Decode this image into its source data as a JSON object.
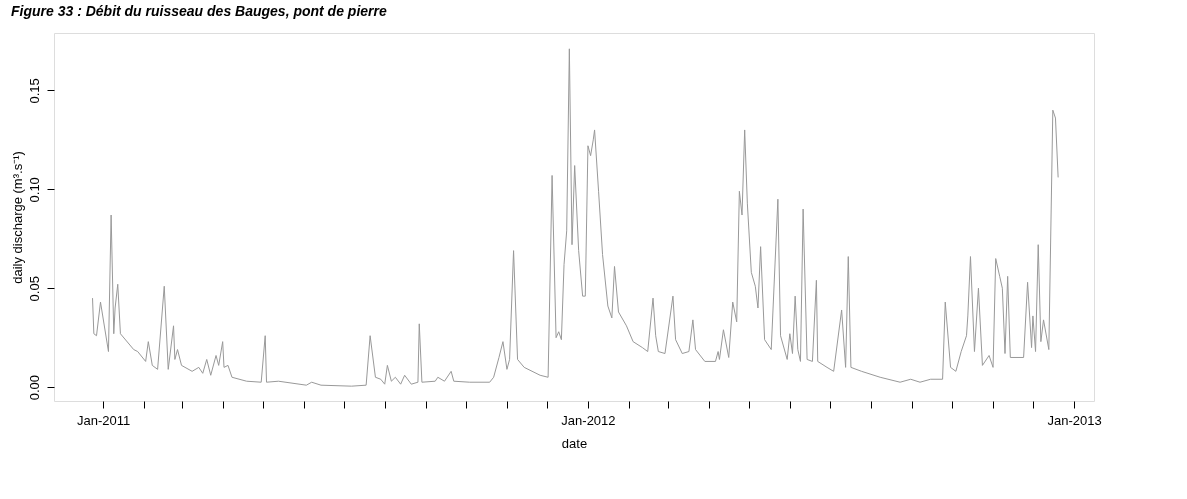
{
  "chart_data": {
    "type": "line",
    "title": "Figure 33 : Débit du ruisseau des Bauges, pont de pierre",
    "xlabel": "date",
    "ylabel": "daily discharge (m³.s⁻¹)",
    "xlim": [
      "2010-11-25",
      "2013-01-16"
    ],
    "xticks": [
      {
        "value": "2011-01-01",
        "label": "Jan-2011"
      },
      {
        "value": "2011-02-01",
        "label": null
      },
      {
        "value": "2011-03-01",
        "label": null
      },
      {
        "value": "2011-04-01",
        "label": null
      },
      {
        "value": "2011-05-01",
        "label": null
      },
      {
        "value": "2011-06-01",
        "label": null
      },
      {
        "value": "2011-07-01",
        "label": null
      },
      {
        "value": "2011-08-01",
        "label": null
      },
      {
        "value": "2011-09-01",
        "label": null
      },
      {
        "value": "2011-10-01",
        "label": null
      },
      {
        "value": "2011-11-01",
        "label": null
      },
      {
        "value": "2011-12-01",
        "label": null
      },
      {
        "value": "2012-01-01",
        "label": "Jan-2012"
      },
      {
        "value": "2012-02-01",
        "label": null
      },
      {
        "value": "2012-03-01",
        "label": null
      },
      {
        "value": "2012-04-01",
        "label": null
      },
      {
        "value": "2012-05-01",
        "label": null
      },
      {
        "value": "2012-06-01",
        "label": null
      },
      {
        "value": "2012-07-01",
        "label": null
      },
      {
        "value": "2012-08-01",
        "label": null
      },
      {
        "value": "2012-09-01",
        "label": null
      },
      {
        "value": "2012-10-01",
        "label": null
      },
      {
        "value": "2012-11-01",
        "label": null
      },
      {
        "value": "2012-12-01",
        "label": null
      },
      {
        "value": "2013-01-01",
        "label": "Jan-2013"
      }
    ],
    "ylim": [
      -0.007,
      0.179
    ],
    "yticks": [
      {
        "value": 0,
        "label": "0.00"
      },
      {
        "value": 0.05,
        "label": "0.05"
      },
      {
        "value": 0.1,
        "label": "0.10"
      },
      {
        "value": 0.15,
        "label": "0.15"
      }
    ],
    "grid": false,
    "marker": "none",
    "line_style": "solid",
    "series": [
      {
        "color": "#999999",
        "x": [
          "2010-12-24",
          "2010-12-25",
          "2010-12-27",
          "2010-12-30",
          "2011-01-05",
          "2011-01-07",
          "2011-01-09",
          "2011-01-10",
          "2011-01-12",
          "2011-01-14",
          "2011-01-24",
          "2011-01-27",
          "2011-02-02",
          "2011-02-04",
          "2011-02-07",
          "2011-02-11",
          "2011-02-16",
          "2011-02-19",
          "2011-02-23",
          "2011-02-24",
          "2011-02-26",
          "2011-03-01",
          "2011-03-09",
          "2011-03-14",
          "2011-03-17",
          "2011-03-20",
          "2011-03-23",
          "2011-03-27",
          "2011-03-29",
          "2011-04-01",
          "2011-04-02",
          "2011-04-05",
          "2011-04-08",
          "2011-04-19",
          "2011-04-30",
          "2011-05-03",
          "2011-05-04",
          "2011-05-13",
          "2011-06-03",
          "2011-06-07",
          "2011-06-14",
          "2011-07-07",
          "2011-07-18",
          "2011-07-21",
          "2011-07-25",
          "2011-07-29",
          "2011-08-01",
          "2011-08-03",
          "2011-08-06",
          "2011-08-09",
          "2011-08-13",
          "2011-08-16",
          "2011-08-21",
          "2011-08-26",
          "2011-08-27",
          "2011-08-29",
          "2011-09-08",
          "2011-09-10",
          "2011-09-15",
          "2011-09-20",
          "2011-09-22",
          "2011-10-04",
          "2011-10-19",
          "2011-10-22",
          "2011-10-26",
          "2011-10-29",
          "2011-11-01",
          "2011-11-03",
          "2011-11-06",
          "2011-11-09",
          "2011-11-14",
          "2011-11-26",
          "2011-12-02",
          "2011-12-05",
          "2011-12-08",
          "2011-12-10",
          "2011-12-12",
          "2011-12-14",
          "2011-12-16",
          "2011-12-18",
          "2011-12-20",
          "2011-12-22",
          "2011-12-25",
          "2011-12-28",
          "2011-12-30",
          "2012-01-01",
          "2012-01-03",
          "2012-01-05",
          "2012-01-06",
          "2012-01-09",
          "2012-01-12",
          "2012-01-16",
          "2012-01-19",
          "2012-01-21",
          "2012-01-24",
          "2012-01-30",
          "2012-02-04",
          "2012-02-11",
          "2012-02-15",
          "2012-02-19",
          "2012-02-21",
          "2012-02-23",
          "2012-02-28",
          "2012-03-05",
          "2012-03-07",
          "2012-03-12",
          "2012-03-17",
          "2012-03-20",
          "2012-03-22",
          "2012-03-29",
          "2012-04-06",
          "2012-04-08",
          "2012-04-09",
          "2012-04-12",
          "2012-04-16",
          "2012-04-19",
          "2012-04-22",
          "2012-04-24",
          "2012-04-26",
          "2012-04-28",
          "2012-04-30",
          "2012-05-03",
          "2012-05-06",
          "2012-05-08",
          "2012-05-10",
          "2012-05-13",
          "2012-05-18",
          "2012-05-23",
          "2012-05-25",
          "2012-05-30",
          "2012-06-01",
          "2012-06-03",
          "2012-06-05",
          "2012-06-07",
          "2012-06-09",
          "2012-06-11",
          "2012-06-14",
          "2012-06-18",
          "2012-06-21",
          "2012-06-22",
          "2012-06-29",
          "2012-07-04",
          "2012-07-10",
          "2012-07-13",
          "2012-07-15",
          "2012-07-17",
          "2012-07-25",
          "2012-08-08",
          "2012-08-23",
          "2012-08-31",
          "2012-09-07",
          "2012-09-15",
          "2012-09-24",
          "2012-09-26",
          "2012-09-30",
          "2012-10-04",
          "2012-10-08",
          "2012-10-12",
          "2012-10-13",
          "2012-10-15",
          "2012-10-18",
          "2012-10-21",
          "2012-10-24",
          "2012-10-29",
          "2012-11-01",
          "2012-11-03",
          "2012-11-06",
          "2012-11-08",
          "2012-11-10",
          "2012-11-12",
          "2012-11-14",
          "2012-11-24",
          "2012-11-27",
          "2012-11-30",
          "2012-12-01",
          "2012-12-03",
          "2012-12-05",
          "2012-12-07",
          "2012-12-09",
          "2012-12-13",
          "2012-12-16",
          "2012-12-18",
          "2012-12-20"
        ],
        "values": [
          0.045,
          0.027,
          0.026,
          0.043,
          0.018,
          0.087,
          0.027,
          0.04,
          0.052,
          0.027,
          0.019,
          0.018,
          0.013,
          0.023,
          0.011,
          0.009,
          0.051,
          0.009,
          0.031,
          0.014,
          0.019,
          0.011,
          0.008,
          0.01,
          0.007,
          0.014,
          0.006,
          0.016,
          0.011,
          0.023,
          0.01,
          0.011,
          0.005,
          0.003,
          0.0025,
          0.026,
          0.0025,
          0.003,
          0.001,
          0.0025,
          0.001,
          0.0005,
          0.001,
          0.026,
          0.005,
          0.004,
          0.0015,
          0.011,
          0.003,
          0.005,
          0.0015,
          0.006,
          0.0015,
          0.0025,
          0.032,
          0.0025,
          0.003,
          0.005,
          0.003,
          0.008,
          0.003,
          0.0025,
          0.0025,
          0.005,
          0.015,
          0.023,
          0.009,
          0.014,
          0.069,
          0.014,
          0.01,
          0.006,
          0.005,
          0.107,
          0.025,
          0.028,
          0.024,
          0.062,
          0.079,
          0.171,
          0.072,
          0.112,
          0.069,
          0.046,
          0.046,
          0.122,
          0.117,
          0.125,
          0.13,
          0.099,
          0.067,
          0.041,
          0.035,
          0.061,
          0.038,
          0.031,
          0.023,
          0.02,
          0.018,
          0.045,
          0.026,
          0.018,
          0.017,
          0.046,
          0.024,
          0.017,
          0.018,
          0.034,
          0.019,
          0.013,
          0.013,
          0.018,
          0.014,
          0.029,
          0.015,
          0.043,
          0.033,
          0.099,
          0.087,
          0.13,
          0.093,
          0.058,
          0.051,
          0.04,
          0.071,
          0.024,
          0.019,
          0.095,
          0.026,
          0.014,
          0.027,
          0.017,
          0.046,
          0.019,
          0.013,
          0.09,
          0.014,
          0.013,
          0.054,
          0.013,
          0.01,
          0.008,
          0.039,
          0.01,
          0.066,
          0.01,
          0.008,
          0.005,
          0.0025,
          0.004,
          0.0025,
          0.004,
          0.004,
          0.043,
          0.01,
          0.008,
          0.018,
          0.026,
          0.036,
          0.066,
          0.018,
          0.05,
          0.011,
          0.016,
          0.01,
          0.065,
          0.056,
          0.05,
          0.017,
          0.056,
          0.015,
          0.015,
          0.053,
          0.02,
          0.036,
          0.018,
          0.072,
          0.023,
          0.034,
          0.019,
          0.14,
          0.136,
          0.106
        ]
      }
    ]
  }
}
